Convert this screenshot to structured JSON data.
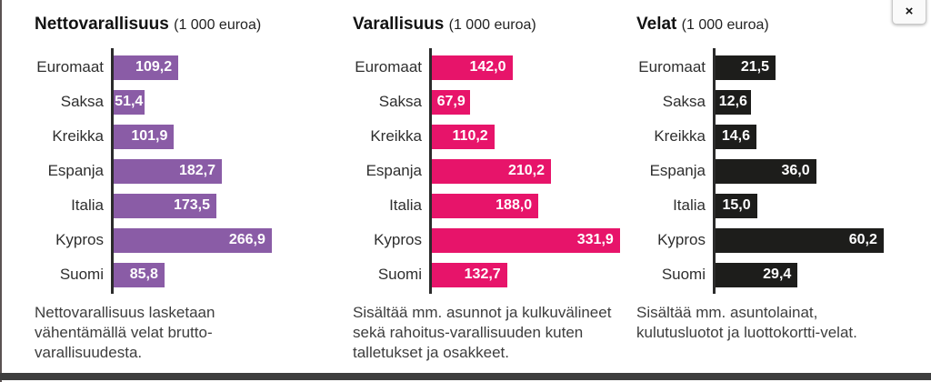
{
  "page": {
    "close_button": "×"
  },
  "colors": {
    "net_wealth_purple": "#8a5ca6",
    "wealth_pink": "#e7146a",
    "debt_black": "#1d1d1b",
    "axis": "#2b2b2b",
    "bottom_bar": "#3e3e3e"
  },
  "chart_data": [
    {
      "type": "bar",
      "title": "Nettovarallisuus",
      "unit_label": "(1 000 euroa)",
      "categories": [
        "Euromaat",
        "Saksa",
        "Kreikka",
        "Espanja",
        "Italia",
        "Kypros",
        "Suomi"
      ],
      "values": [
        109.2,
        51.4,
        101.9,
        182.7,
        173.5,
        266.9,
        85.8
      ],
      "value_labels": [
        "109,2",
        "51,4",
        "101,9",
        "182,7",
        "173,5",
        "266,9",
        "85,8"
      ],
      "bar_color": "#8a5ca6",
      "xlim": [
        0,
        330
      ],
      "orientation": "horizontal",
      "grid": false,
      "note": "Nettovarallisuus lasketaan vähentämällä velat brutto-varallisuudesta."
    },
    {
      "type": "bar",
      "title": "Varallisuus",
      "unit_label": "(1 000 euroa)",
      "categories": [
        "Euromaat",
        "Saksa",
        "Kreikka",
        "Espanja",
        "Italia",
        "Kypros",
        "Suomi"
      ],
      "values": [
        142.0,
        67.9,
        110.2,
        210.2,
        188.0,
        331.9,
        132.7
      ],
      "value_labels": [
        "142,0",
        "67,9",
        "110,2",
        "210,2",
        "188,0",
        "331,9",
        "132,7"
      ],
      "bar_color": "#e7146a",
      "xlim": [
        0,
        345
      ],
      "orientation": "horizontal",
      "grid": false,
      "note": "Sisältää mm. asunnot ja kulkuvälineet sekä rahoitus-varallisuuden kuten talletukset ja osakkeet."
    },
    {
      "type": "bar",
      "title": "Velat",
      "unit_label": "(1 000 euroa)",
      "categories": [
        "Euromaat",
        "Saksa",
        "Kreikka",
        "Espanja",
        "Italia",
        "Kypros",
        "Suomi"
      ],
      "values": [
        21.5,
        12.6,
        14.6,
        36.0,
        15.0,
        60.2,
        29.4
      ],
      "value_labels": [
        "21,5",
        "12,6",
        "14,6",
        "36,0",
        "15,0",
        "60,2",
        "29,4"
      ],
      "bar_color": "#1d1d1b",
      "xlim": [
        0,
        70
      ],
      "orientation": "horizontal",
      "grid": false,
      "note": "Sisältää mm. asuntolainat, kulutusluotot ja luottokortti-velat."
    }
  ]
}
